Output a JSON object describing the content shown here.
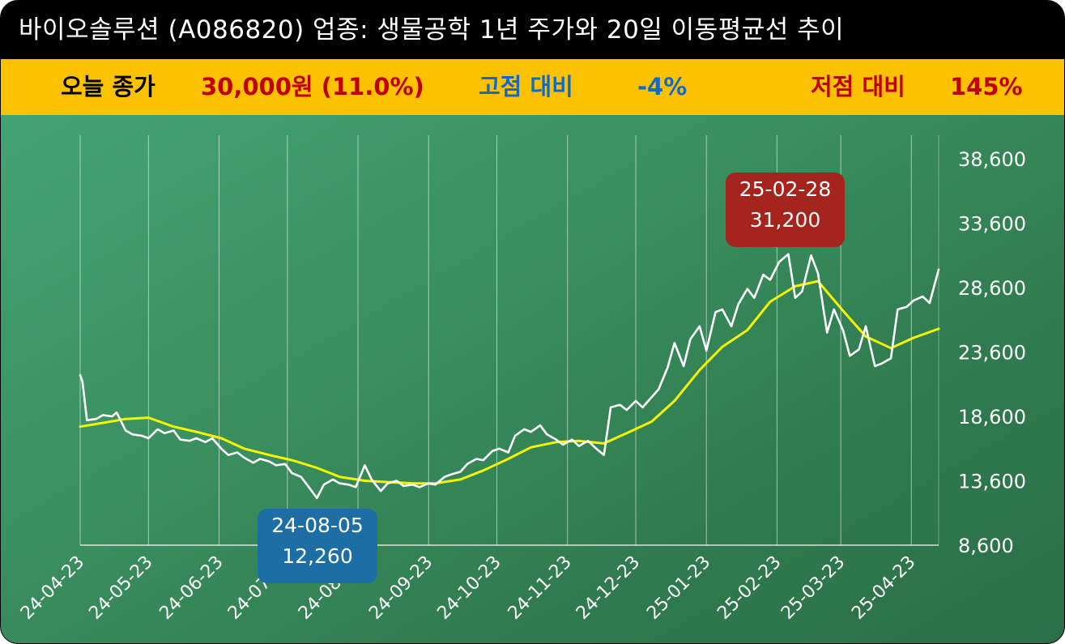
{
  "header": {
    "title": "바이오솔루션 (A086820) 업종: 생물공학 1년 주가와 20일 이동평균선 추이"
  },
  "summary": {
    "close_label": "오늘 종가",
    "close_value": "30,000원 (11.0%)",
    "high_label": "고점 대비",
    "high_value": "-4%",
    "low_label": "저점 대비",
    "low_value": "145%"
  },
  "colors": {
    "price_line": "#ffffff",
    "ma_line": "#f5f500",
    "high_box": "#a6241e",
    "low_box": "#1e6ea6",
    "summary_bg": "#fcc200"
  },
  "annotations": {
    "high": {
      "date": "25-02-28",
      "value": "31,200"
    },
    "low": {
      "date": "24-08-05",
      "value": "12,260"
    }
  },
  "chart_data": {
    "type": "line",
    "x_tick_labels": [
      "24-04-23",
      "24-05-23",
      "24-06-23",
      "24-07-23",
      "24-08-23",
      "24-09-23",
      "24-10-23",
      "24-11-23",
      "24-12-23",
      "25-01-23",
      "25-02-23",
      "25-03-23",
      "25-04-23"
    ],
    "y_tick_labels": [
      "38,600",
      "33,600",
      "28,600",
      "23,600",
      "18,600",
      "13,600",
      "8,600"
    ],
    "ylim": [
      8600,
      38600
    ],
    "grid": true,
    "series": [
      {
        "role": "price",
        "values": [
          [
            "2024-04-23",
            21800
          ],
          [
            "2024-04-24",
            21300
          ],
          [
            "2024-04-26",
            18300
          ],
          [
            "2024-04-30",
            18400
          ],
          [
            "2024-05-03",
            18700
          ],
          [
            "2024-05-07",
            18600
          ],
          [
            "2024-05-09",
            18900
          ],
          [
            "2024-05-13",
            17500
          ],
          [
            "2024-05-16",
            17200
          ],
          [
            "2024-05-20",
            17100
          ],
          [
            "2024-05-23",
            16900
          ],
          [
            "2024-05-27",
            17600
          ],
          [
            "2024-05-30",
            17300
          ],
          [
            "2024-06-03",
            17500
          ],
          [
            "2024-06-06",
            16800
          ],
          [
            "2024-06-10",
            16700
          ],
          [
            "2024-06-13",
            16900
          ],
          [
            "2024-06-17",
            16600
          ],
          [
            "2024-06-20",
            16900
          ],
          [
            "2024-06-24",
            16100
          ],
          [
            "2024-06-27",
            15600
          ],
          [
            "2024-07-01",
            15800
          ],
          [
            "2024-07-04",
            15400
          ],
          [
            "2024-07-08",
            15000
          ],
          [
            "2024-07-11",
            15300
          ],
          [
            "2024-07-15",
            15100
          ],
          [
            "2024-07-18",
            14800
          ],
          [
            "2024-07-22",
            14900
          ],
          [
            "2024-07-25",
            14200
          ],
          [
            "2024-07-29",
            13900
          ],
          [
            "2024-08-01",
            13200
          ],
          [
            "2024-08-05",
            12260
          ],
          [
            "2024-08-08",
            13300
          ],
          [
            "2024-08-12",
            13700
          ],
          [
            "2024-08-15",
            13400
          ],
          [
            "2024-08-19",
            13300
          ],
          [
            "2024-08-22",
            13100
          ],
          [
            "2024-08-26",
            14800
          ],
          [
            "2024-08-29",
            13700
          ],
          [
            "2024-09-02",
            12800
          ],
          [
            "2024-09-05",
            13400
          ],
          [
            "2024-09-09",
            13600
          ],
          [
            "2024-09-12",
            13200
          ],
          [
            "2024-09-16",
            13300
          ],
          [
            "2024-09-19",
            13100
          ],
          [
            "2024-09-23",
            13400
          ],
          [
            "2024-09-26",
            13300
          ],
          [
            "2024-09-30",
            13900
          ],
          [
            "2024-10-03",
            14100
          ],
          [
            "2024-10-07",
            14300
          ],
          [
            "2024-10-10",
            14900
          ],
          [
            "2024-10-14",
            15300
          ],
          [
            "2024-10-17",
            15200
          ],
          [
            "2024-10-21",
            15900
          ],
          [
            "2024-10-24",
            16100
          ],
          [
            "2024-10-28",
            15800
          ],
          [
            "2024-10-31",
            17100
          ],
          [
            "2024-11-04",
            17600
          ],
          [
            "2024-11-07",
            17400
          ],
          [
            "2024-11-11",
            17900
          ],
          [
            "2024-11-14",
            17200
          ],
          [
            "2024-11-18",
            16800
          ],
          [
            "2024-11-21",
            16400
          ],
          [
            "2024-11-25",
            16800
          ],
          [
            "2024-11-28",
            16300
          ],
          [
            "2024-12-02",
            16700
          ],
          [
            "2024-12-05",
            16200
          ],
          [
            "2024-12-09",
            15600
          ],
          [
            "2024-12-12",
            19300
          ],
          [
            "2024-12-16",
            19500
          ],
          [
            "2024-12-19",
            19100
          ],
          [
            "2024-12-23",
            19800
          ],
          [
            "2024-12-26",
            19300
          ],
          [
            "2024-12-30",
            20100
          ],
          [
            "2025-01-02",
            20700
          ],
          [
            "2025-01-06",
            22400
          ],
          [
            "2025-01-09",
            24300
          ],
          [
            "2025-01-13",
            22500
          ],
          [
            "2025-01-16",
            24600
          ],
          [
            "2025-01-20",
            25600
          ],
          [
            "2025-01-23",
            23700
          ],
          [
            "2025-01-27",
            26700
          ],
          [
            "2025-01-30",
            26900
          ],
          [
            "2025-02-03",
            25600
          ],
          [
            "2025-02-06",
            27300
          ],
          [
            "2025-02-10",
            28500
          ],
          [
            "2025-02-13",
            27800
          ],
          [
            "2025-02-17",
            29600
          ],
          [
            "2025-02-20",
            29200
          ],
          [
            "2025-02-24",
            30600
          ],
          [
            "2025-02-28",
            31200
          ],
          [
            "2025-03-03",
            27800
          ],
          [
            "2025-03-06",
            28300
          ],
          [
            "2025-03-10",
            31100
          ],
          [
            "2025-03-13",
            29700
          ],
          [
            "2025-03-17",
            25100
          ],
          [
            "2025-03-20",
            26900
          ],
          [
            "2025-03-24",
            25300
          ],
          [
            "2025-03-27",
            23300
          ],
          [
            "2025-03-31",
            23800
          ],
          [
            "2025-04-03",
            25600
          ],
          [
            "2025-04-07",
            22500
          ],
          [
            "2025-04-10",
            22700
          ],
          [
            "2025-04-14",
            23100
          ],
          [
            "2025-04-17",
            26900
          ],
          [
            "2025-04-21",
            27100
          ],
          [
            "2025-04-24",
            27600
          ],
          [
            "2025-04-28",
            27900
          ],
          [
            "2025-05-01",
            27400
          ],
          [
            "2025-05-05",
            30000
          ]
        ]
      },
      {
        "role": "ma20",
        "values": [
          [
            "2024-04-23",
            17800
          ],
          [
            "2024-05-03",
            18100
          ],
          [
            "2024-05-13",
            18400
          ],
          [
            "2024-05-23",
            18500
          ],
          [
            "2024-06-03",
            17800
          ],
          [
            "2024-06-13",
            17400
          ],
          [
            "2024-06-24",
            16900
          ],
          [
            "2024-07-04",
            16100
          ],
          [
            "2024-07-15",
            15600
          ],
          [
            "2024-07-25",
            15200
          ],
          [
            "2024-08-05",
            14600
          ],
          [
            "2024-08-15",
            13900
          ],
          [
            "2024-08-26",
            13600
          ],
          [
            "2024-09-05",
            13500
          ],
          [
            "2024-09-16",
            13400
          ],
          [
            "2024-09-26",
            13400
          ],
          [
            "2024-10-07",
            13700
          ],
          [
            "2024-10-17",
            14400
          ],
          [
            "2024-10-28",
            15300
          ],
          [
            "2024-11-07",
            16200
          ],
          [
            "2024-11-18",
            16600
          ],
          [
            "2024-11-28",
            16700
          ],
          [
            "2024-12-09",
            16500
          ],
          [
            "2024-12-19",
            17300
          ],
          [
            "2024-12-30",
            18200
          ],
          [
            "2025-01-09",
            19800
          ],
          [
            "2025-01-20",
            22200
          ],
          [
            "2025-01-30",
            24000
          ],
          [
            "2025-02-10",
            25300
          ],
          [
            "2025-02-20",
            27500
          ],
          [
            "2025-03-03",
            28700
          ],
          [
            "2025-03-13",
            29100
          ],
          [
            "2025-03-24",
            26800
          ],
          [
            "2025-04-03",
            24800
          ],
          [
            "2025-04-14",
            23900
          ],
          [
            "2025-04-24",
            24700
          ],
          [
            "2025-05-05",
            25400
          ]
        ]
      }
    ]
  }
}
